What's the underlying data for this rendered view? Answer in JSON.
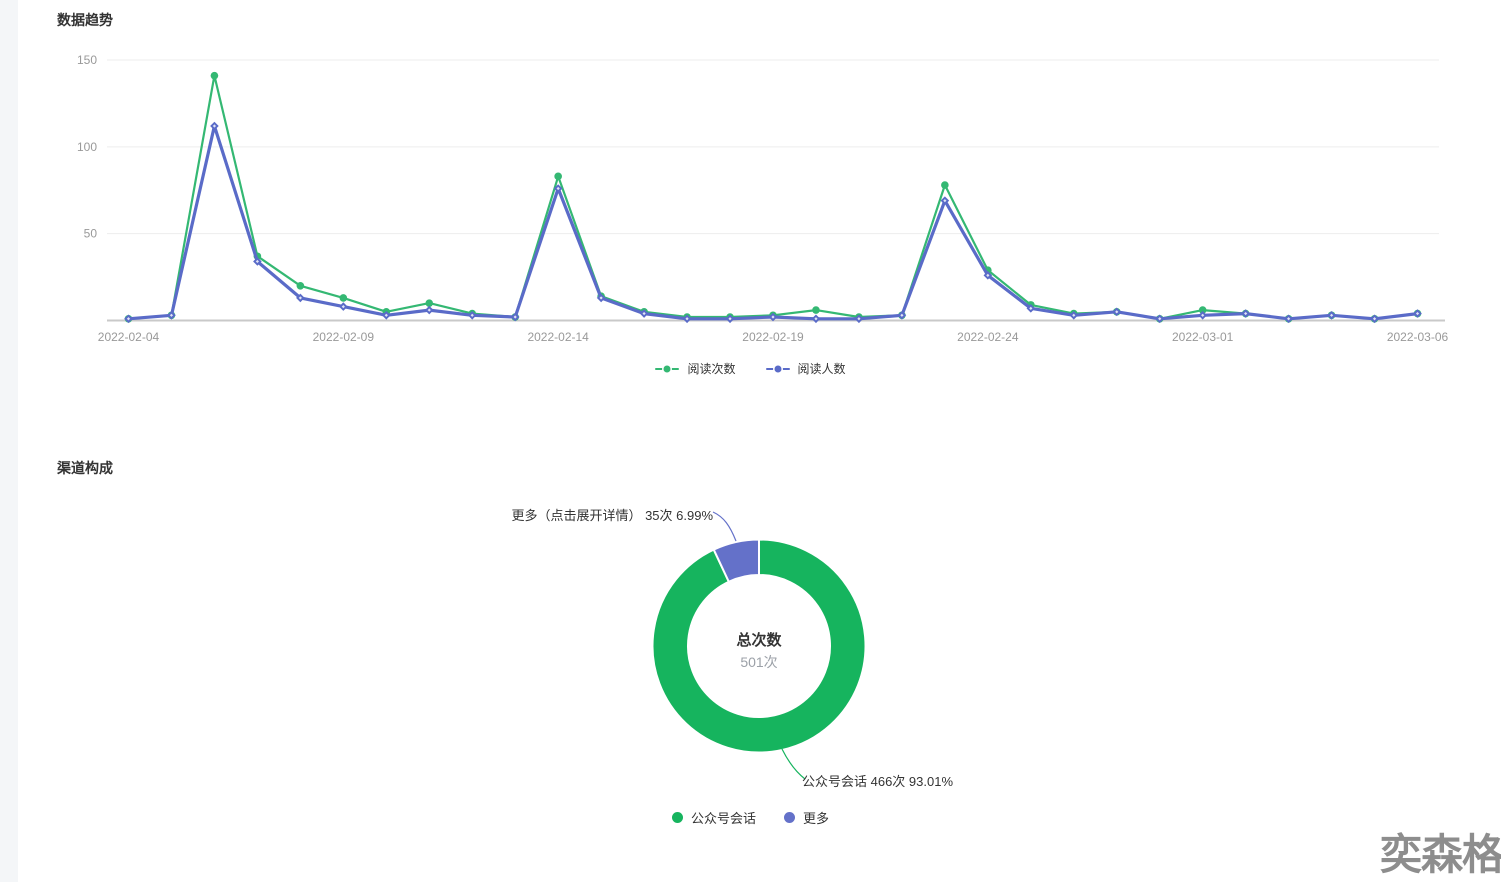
{
  "watermark": "奕森格",
  "colors": {
    "grid": "#ededed",
    "axis_line": "#c9c9c9",
    "axis_text": "#999999",
    "title_text": "#333333"
  },
  "chart_data": [
    {
      "type": "line",
      "title": "数据趋势",
      "x": [
        "2022-02-04",
        "2022-02-05",
        "2022-02-06",
        "2022-02-07",
        "2022-02-08",
        "2022-02-09",
        "2022-02-10",
        "2022-02-11",
        "2022-02-12",
        "2022-02-13",
        "2022-02-14",
        "2022-02-15",
        "2022-02-16",
        "2022-02-17",
        "2022-02-18",
        "2022-02-19",
        "2022-02-20",
        "2022-02-21",
        "2022-02-22",
        "2022-02-23",
        "2022-02-24",
        "2022-02-25",
        "2022-02-26",
        "2022-02-27",
        "2022-02-28",
        "2022-03-01",
        "2022-03-02",
        "2022-03-03",
        "2022-03-04",
        "2022-03-05",
        "2022-03-06"
      ],
      "x_tick_labels": [
        "2022-02-04",
        "2022-02-09",
        "2022-02-14",
        "2022-02-19",
        "2022-02-24",
        "2022-03-01",
        "2022-03-06"
      ],
      "x_tick_indices": [
        0,
        5,
        10,
        15,
        20,
        25,
        30
      ],
      "yticks": [
        50,
        100,
        150
      ],
      "ylim": [
        0,
        150
      ],
      "grid": true,
      "legend_position": "bottom",
      "series": [
        {
          "name": "阅读次数",
          "color": "#34b873",
          "values": [
            1,
            3,
            141,
            37,
            20,
            13,
            5,
            10,
            4,
            2,
            83,
            14,
            5,
            2,
            2,
            3,
            6,
            2,
            3,
            78,
            29,
            9,
            4,
            5,
            1,
            6,
            4,
            1,
            3,
            1,
            4
          ]
        },
        {
          "name": "阅读人数",
          "color": "#5a6bc8",
          "values": [
            1,
            3,
            112,
            34,
            13,
            8,
            3,
            6,
            3,
            2,
            76,
            13,
            4,
            1,
            1,
            2,
            1,
            1,
            3,
            69,
            26,
            7,
            3,
            5,
            1,
            3,
            4,
            1,
            3,
            1,
            4
          ]
        }
      ]
    },
    {
      "type": "pie",
      "title": "渠道构成",
      "donut": true,
      "center_label": "总次数",
      "center_value": "501次",
      "total": 501,
      "unit": "次",
      "legend_position": "bottom",
      "slices": [
        {
          "name": "公众号会话",
          "value": 466,
          "pct": 93.01,
          "label_text": "公众号会话 466次 93.01%",
          "color": "#16b45e"
        },
        {
          "name": "更多",
          "value": 35,
          "pct": 6.99,
          "label_text": "更多（点击展开详情） 35次 6.99%",
          "color": "#6471c9"
        }
      ]
    }
  ]
}
